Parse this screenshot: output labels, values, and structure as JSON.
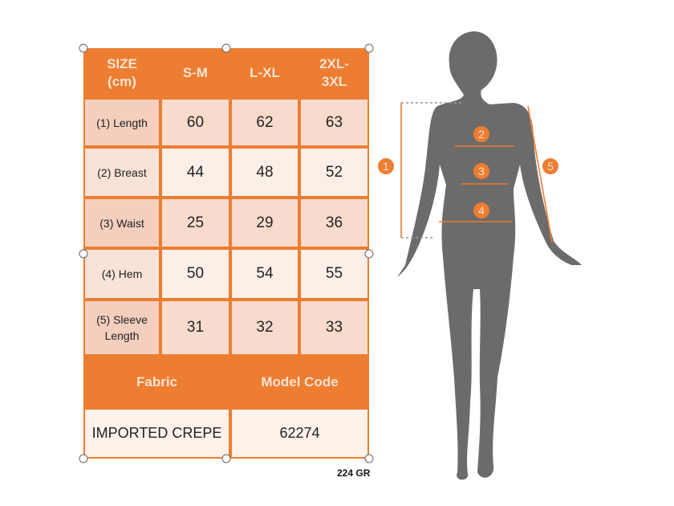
{
  "table": {
    "headers": [
      "SIZE\n(cm)",
      "S-M",
      "L-XL",
      "2XL-\n3XL"
    ],
    "rows": [
      {
        "label": "(1) Length",
        "values": [
          "60",
          "62",
          "63"
        ]
      },
      {
        "label": "(2) Breast",
        "values": [
          "44",
          "48",
          "52"
        ]
      },
      {
        "label": "(3) Waist",
        "values": [
          "25",
          "29",
          "36"
        ]
      },
      {
        "label": "(4) Hem",
        "values": [
          "50",
          "54",
          "55"
        ]
      },
      {
        "label": "(5) Sleeve\nLength",
        "values": [
          "31",
          "32",
          "33"
        ]
      }
    ],
    "fabric_label": "Fabric",
    "model_code_label": "Model Code",
    "fabric_value": "IMPORTED CREPE",
    "model_code_value": "62274"
  },
  "weight": "224 GR",
  "markers": [
    "1",
    "2",
    "3",
    "4",
    "5"
  ],
  "colors": {
    "accent": "#ED7D31",
    "silhouette": "#6B6B6B",
    "cell_dark": "#F7D7C7",
    "cell_light": "#FBEBE2"
  }
}
